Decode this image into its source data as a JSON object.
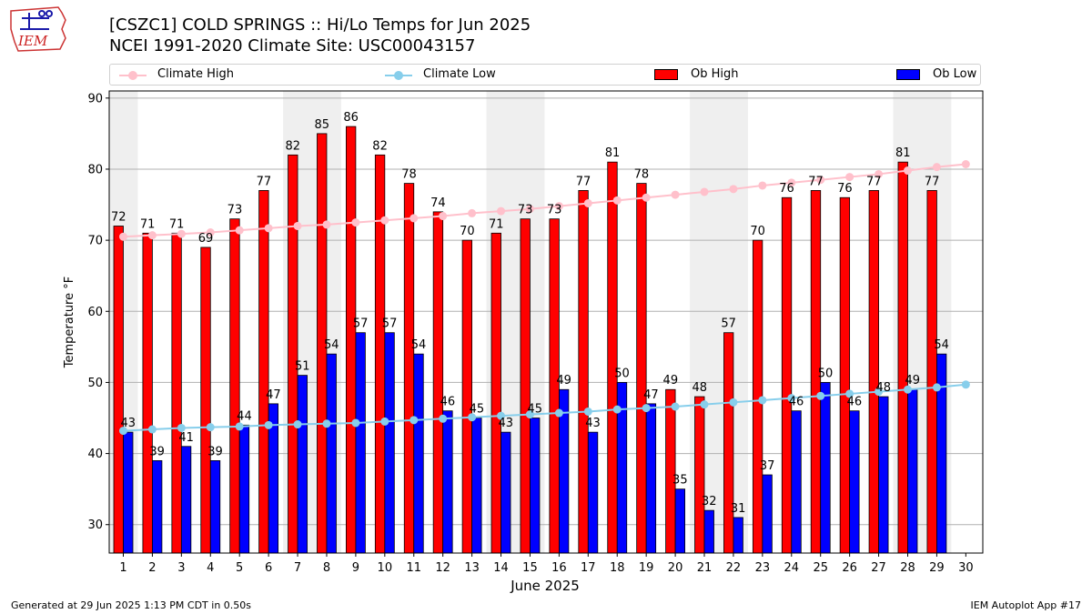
{
  "title_line1": "[CSZC1] COLD SPRINGS :: Hi/Lo Temps for Jun 2025",
  "title_line2": "NCEI 1991-2020 Climate Site: USC00043157",
  "logo_text": "IEM",
  "footer_left": "Generated at 29 Jun 2025 1:13 PM CDT in 0.50s",
  "footer_right": "IEM Autoplot App #17",
  "colors": {
    "ob_high": "#ff0000",
    "ob_low": "#0000ff",
    "climate_high": "#ffc0cb",
    "climate_low": "#87ceeb",
    "weekend_shade": "#efefef",
    "grid": "#b0b0b0"
  },
  "chart_data": {
    "type": "bar",
    "xlabel": "June 2025",
    "ylabel": "Temperature °F",
    "ylim": [
      26,
      91
    ],
    "yticks": [
      30,
      40,
      50,
      60,
      70,
      80,
      90
    ],
    "grid": "horizontal",
    "legend_position": "top",
    "categories": [
      "1",
      "2",
      "3",
      "4",
      "5",
      "6",
      "7",
      "8",
      "9",
      "10",
      "11",
      "12",
      "13",
      "14",
      "15",
      "16",
      "17",
      "18",
      "19",
      "20",
      "21",
      "22",
      "23",
      "24",
      "25",
      "26",
      "27",
      "28",
      "29",
      "30"
    ],
    "shaded_weekend_days": [
      [
        1,
        1
      ],
      [
        7,
        8
      ],
      [
        14,
        15
      ],
      [
        21,
        22
      ],
      [
        28,
        29
      ]
    ],
    "series": [
      {
        "name": "Ob High",
        "kind": "bar",
        "values": [
          72,
          71,
          71,
          69,
          73,
          77,
          82,
          85,
          86,
          82,
          78,
          74,
          70,
          71,
          73,
          73,
          77,
          81,
          78,
          49,
          48,
          57,
          70,
          76,
          77,
          76,
          77,
          81,
          77,
          null
        ]
      },
      {
        "name": "Ob Low",
        "kind": "bar",
        "values": [
          43,
          39,
          41,
          39,
          44,
          47,
          51,
          54,
          57,
          57,
          54,
          46,
          45,
          43,
          45,
          49,
          43,
          50,
          47,
          35,
          32,
          31,
          37,
          46,
          50,
          46,
          48,
          49,
          54,
          null
        ]
      },
      {
        "name": "Climate High",
        "kind": "line",
        "values": [
          70.5,
          70.7,
          70.9,
          71.1,
          71.4,
          71.7,
          72.0,
          72.2,
          72.5,
          72.8,
          73.1,
          73.4,
          73.8,
          74.1,
          74.4,
          74.8,
          75.2,
          75.6,
          76.0,
          76.4,
          76.8,
          77.2,
          77.7,
          78.1,
          78.5,
          78.9,
          79.3,
          79.8,
          80.3,
          80.7
        ]
      },
      {
        "name": "Climate Low",
        "kind": "line",
        "values": [
          43.2,
          43.4,
          43.6,
          43.7,
          43.8,
          44.0,
          44.1,
          44.2,
          44.3,
          44.5,
          44.7,
          44.9,
          45.1,
          45.3,
          45.5,
          45.7,
          45.9,
          46.2,
          46.4,
          46.6,
          46.9,
          47.2,
          47.5,
          47.8,
          48.1,
          48.4,
          48.7,
          49.0,
          49.3,
          49.7
        ]
      }
    ]
  }
}
